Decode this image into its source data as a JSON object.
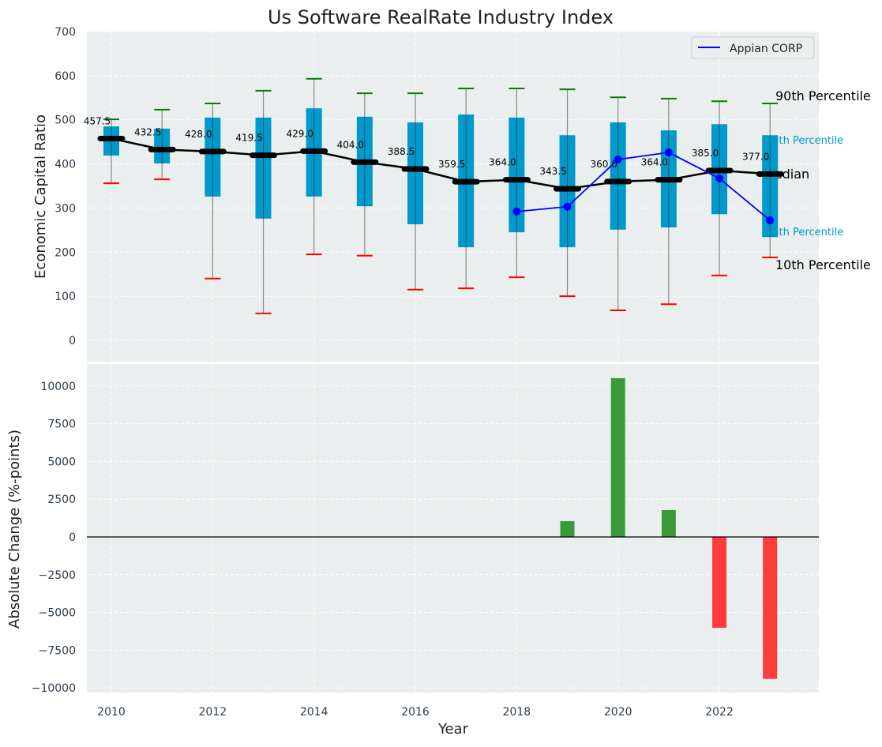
{
  "chart_data": [
    {
      "type": "box-range",
      "title": "Us Software RealRate Industry Index",
      "xlabel": "",
      "ylabel": "Economic Capital Ratio",
      "ylim": [
        -80,
        700
      ],
      "yticks": [
        0,
        100,
        200,
        300,
        400,
        500,
        600,
        700
      ],
      "years": [
        2010,
        2011,
        2012,
        2013,
        2014,
        2015,
        2016,
        2017,
        2018,
        2019,
        2020,
        2021,
        2022,
        2023
      ],
      "p90": [
        501,
        523,
        537,
        566,
        593,
        560,
        560,
        571,
        571,
        569,
        551,
        548,
        542,
        537
      ],
      "p75": [
        485,
        480,
        505,
        505,
        526,
        507,
        494,
        512,
        505,
        465,
        494,
        476,
        490,
        465
      ],
      "median": [
        457.5,
        432.5,
        428.0,
        419.5,
        429.0,
        404.0,
        388.5,
        359.5,
        364.0,
        343.5,
        360.0,
        364.0,
        385.0,
        377.0
      ],
      "median_labels": [
        "457.5",
        "432.5",
        "428.0",
        "419.5",
        "429.0",
        "404.0",
        "388.5",
        "359.5",
        "364.0",
        "343.5",
        "360.0",
        "364.0",
        "385.0",
        "377.0"
      ],
      "p25": [
        419,
        401,
        326,
        276,
        326,
        304,
        263,
        211,
        245,
        211,
        251,
        256,
        286,
        234
      ],
      "p10": [
        356,
        365,
        140,
        61,
        195,
        192,
        115,
        118,
        143,
        100,
        68,
        82,
        147,
        188
      ],
      "company": {
        "name": "Appian CORP",
        "years": [
          2018,
          2019,
          2020,
          2021,
          2022,
          2023
        ],
        "values": [
          292,
          303,
          410,
          426,
          367,
          272
        ]
      },
      "right_labels": {
        "p90": "90th Percentile",
        "p75": "75th Percentile",
        "median": "Median",
        "p25": "25th Percentile",
        "p10": "10th Percentile"
      },
      "legend": [
        "Appian CORP"
      ],
      "legend_position": "top-right",
      "grid": true
    },
    {
      "type": "bar",
      "xlabel": "Year",
      "ylabel": "Absolute Change (%-points)",
      "ylim": [
        -10300,
        11500
      ],
      "yticks": [
        -10000,
        -7500,
        -5000,
        -2500,
        0,
        2500,
        5000,
        7500,
        10000
      ],
      "ytick_labels": [
        "−10000",
        "−7500",
        "−5000",
        "−2500",
        "0",
        "2500",
        "5000",
        "7500",
        "10000"
      ],
      "xticks": [
        2010,
        2012,
        2014,
        2016,
        2018,
        2020,
        2022
      ],
      "years": [
        2019,
        2020,
        2021,
        2022,
        2023
      ],
      "values": [
        1050,
        10520,
        1780,
        -6020,
        -9400
      ],
      "colors": {
        "positive": "#3a9a3a",
        "negative": "#ff3c3c"
      }
    }
  ]
}
